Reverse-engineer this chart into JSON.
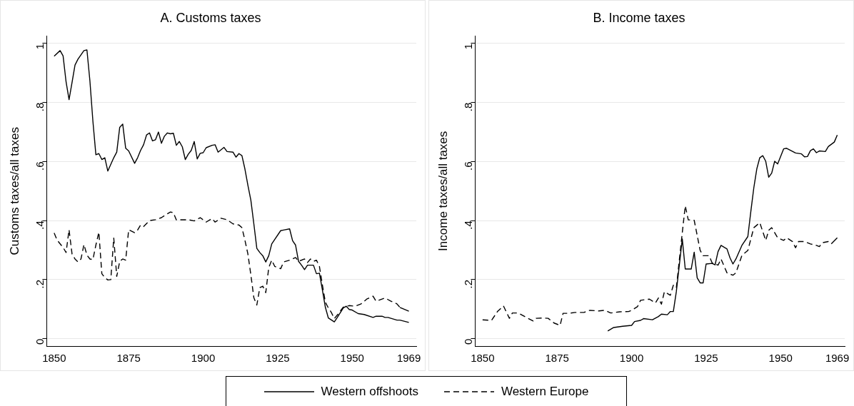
{
  "chart_data": [
    {
      "type": "line",
      "title": "A. Customs taxes",
      "ylabel": "Customs taxes/all taxes",
      "xlim": [
        1847.5,
        1971.5
      ],
      "xticks": [
        1850,
        1875,
        1900,
        1925,
        1950,
        1969
      ],
      "ylim": [
        -0.025,
        1.025
      ],
      "yticks": [
        {
          "value": 0,
          "label": "0"
        },
        {
          "value": 0.2,
          "label": ".2"
        },
        {
          "value": 0.4,
          "label": ".4"
        },
        {
          "value": 0.6,
          "label": ".6"
        },
        {
          "value": 0.8,
          "label": ".8"
        },
        {
          "value": 1,
          "label": "1"
        }
      ],
      "grid": "y",
      "legend": "bottom",
      "marker": "none",
      "series": [
        {
          "name": "Western offshoots",
          "color": "#000000",
          "line_style": "solid",
          "x": [
            1850,
            1852,
            1853,
            1854,
            1855,
            1856,
            1857,
            1858,
            1860,
            1861,
            1862,
            1863,
            1864,
            1865,
            1866,
            1867,
            1868,
            1870,
            1871,
            1872,
            1873,
            1874,
            1875,
            1877,
            1878,
            1879,
            1880,
            1881,
            1882,
            1883,
            1884,
            1885,
            1886,
            1887,
            1888,
            1889,
            1890,
            1891,
            1892,
            1893,
            1894,
            1895,
            1896,
            1897,
            1898,
            1899,
            1900,
            1901,
            1903,
            1904,
            1905,
            1907,
            1908,
            1910,
            1911,
            1912,
            1913,
            1914,
            1915,
            1916,
            1917,
            1918,
            1919,
            1920,
            1921,
            1922,
            1923,
            1924,
            1926,
            1927,
            1929,
            1930,
            1931,
            1932,
            1933,
            1934,
            1935,
            1937,
            1938,
            1939,
            1940,
            1941,
            1942,
            1944,
            1945,
            1947,
            1948,
            1949,
            1950,
            1952,
            1954,
            1957,
            1958,
            1960,
            1961,
            1962,
            1965,
            1966,
            1969
          ],
          "values": [
            0.957,
            0.976,
            0.958,
            0.87,
            0.81,
            0.868,
            0.927,
            0.947,
            0.976,
            0.978,
            0.873,
            0.737,
            0.623,
            0.627,
            0.607,
            0.613,
            0.568,
            0.613,
            0.632,
            0.716,
            0.727,
            0.645,
            0.636,
            0.594,
            0.613,
            0.638,
            0.657,
            0.69,
            0.697,
            0.67,
            0.674,
            0.7,
            0.662,
            0.686,
            0.697,
            0.694,
            0.696,
            0.655,
            0.668,
            0.65,
            0.607,
            0.625,
            0.638,
            0.668,
            0.609,
            0.628,
            0.63,
            0.647,
            0.655,
            0.657,
            0.632,
            0.648,
            0.634,
            0.632,
            0.615,
            0.627,
            0.62,
            0.575,
            0.52,
            0.469,
            0.389,
            0.306,
            0.292,
            0.281,
            0.26,
            0.281,
            0.321,
            0.336,
            0.366,
            0.368,
            0.372,
            0.332,
            0.317,
            0.262,
            0.249,
            0.234,
            0.249,
            0.249,
            0.22,
            0.222,
            0.165,
            0.106,
            0.07,
            0.057,
            0.072,
            0.104,
            0.11,
            0.099,
            0.097,
            0.085,
            0.082,
            0.072,
            0.076,
            0.076,
            0.072,
            0.072,
            0.063,
            0.063,
            0.055
          ]
        },
        {
          "name": "Western Europe",
          "color": "#000000",
          "line_style": "dashed",
          "x": [
            1850,
            1851,
            1853,
            1854,
            1855,
            1856,
            1857,
            1858,
            1859,
            1860,
            1861,
            1862,
            1863,
            1864,
            1865,
            1866,
            1867,
            1868,
            1869,
            1870,
            1871,
            1872,
            1873,
            1874,
            1875,
            1877,
            1878,
            1879,
            1880,
            1882,
            1884,
            1886,
            1888,
            1889,
            1890,
            1891,
            1893,
            1895,
            1897,
            1899,
            1901,
            1903,
            1904,
            1906,
            1908,
            1910,
            1912,
            1913,
            1914,
            1915,
            1916,
            1917,
            1918,
            1919,
            1920,
            1921,
            1922,
            1923,
            1924,
            1926,
            1927,
            1929,
            1931,
            1932,
            1934,
            1935,
            1936,
            1937,
            1938,
            1939,
            1940,
            1941,
            1942,
            1943,
            1944,
            1945,
            1947,
            1949,
            1951,
            1953,
            1955,
            1957,
            1958,
            1961,
            1963,
            1965,
            1966,
            1969
          ],
          "values": [
            0.358,
            0.334,
            0.309,
            0.292,
            0.369,
            0.287,
            0.27,
            0.26,
            0.27,
            0.319,
            0.283,
            0.27,
            0.268,
            0.317,
            0.361,
            0.22,
            0.207,
            0.199,
            0.2,
            0.341,
            0.211,
            0.262,
            0.27,
            0.266,
            0.369,
            0.359,
            0.368,
            0.385,
            0.38,
            0.4,
            0.403,
            0.41,
            0.423,
            0.429,
            0.427,
            0.402,
            0.403,
            0.403,
            0.399,
            0.41,
            0.395,
            0.407,
            0.395,
            0.408,
            0.403,
            0.389,
            0.385,
            0.376,
            0.334,
            0.287,
            0.216,
            0.139,
            0.114,
            0.173,
            0.178,
            0.156,
            0.241,
            0.266,
            0.245,
            0.237,
            0.26,
            0.266,
            0.275,
            0.262,
            0.27,
            0.258,
            0.27,
            0.262,
            0.266,
            0.245,
            0.182,
            0.123,
            0.104,
            0.089,
            0.068,
            0.08,
            0.107,
            0.112,
            0.11,
            0.118,
            0.135,
            0.144,
            0.127,
            0.138,
            0.127,
            0.118,
            0.106,
            0.093
          ]
        }
      ]
    },
    {
      "type": "line",
      "title": "B. Income taxes",
      "ylabel": "Income taxes/all taxes",
      "xlim": [
        1847.5,
        1971.5
      ],
      "xticks": [
        1850,
        1875,
        1900,
        1925,
        1950,
        1969
      ],
      "ylim": [
        -0.025,
        1.025
      ],
      "yticks": [
        {
          "value": 0,
          "label": "0"
        },
        {
          "value": 0.2,
          "label": ".2"
        },
        {
          "value": 0.4,
          "label": ".4"
        },
        {
          "value": 0.6,
          "label": ".6"
        },
        {
          "value": 0.8,
          "label": ".8"
        },
        {
          "value": 1,
          "label": "1"
        }
      ],
      "grid": "y",
      "legend": "bottom",
      "marker": "none",
      "series": [
        {
          "name": "Western offshoots",
          "color": "#000000",
          "line_style": "solid",
          "x": [
            1892,
            1894,
            1897,
            1900,
            1901,
            1903,
            1904,
            1907,
            1909,
            1910,
            1912,
            1913,
            1914,
            1915,
            1917,
            1918,
            1920,
            1921,
            1922,
            1923,
            1924,
            1925,
            1927,
            1928,
            1929,
            1930,
            1932,
            1933,
            1934,
            1935,
            1937,
            1939,
            1940,
            1941,
            1942,
            1943,
            1944,
            1945,
            1946,
            1947,
            1948,
            1949,
            1951,
            1952,
            1955,
            1957,
            1958,
            1959,
            1960,
            1961,
            1962,
            1963,
            1965,
            1966,
            1968,
            1969
          ],
          "values": [
            0.026,
            0.038,
            0.042,
            0.045,
            0.058,
            0.062,
            0.068,
            0.064,
            0.075,
            0.083,
            0.081,
            0.092,
            0.092,
            0.159,
            0.338,
            0.236,
            0.236,
            0.293,
            0.206,
            0.189,
            0.189,
            0.253,
            0.255,
            0.25,
            0.295,
            0.316,
            0.304,
            0.274,
            0.253,
            0.27,
            0.316,
            0.346,
            0.431,
            0.511,
            0.575,
            0.613,
            0.62,
            0.601,
            0.547,
            0.561,
            0.601,
            0.592,
            0.643,
            0.645,
            0.629,
            0.626,
            0.616,
            0.617,
            0.637,
            0.643,
            0.63,
            0.636,
            0.634,
            0.651,
            0.666,
            0.69
          ]
        },
        {
          "name": "Western Europe",
          "color": "#000000",
          "line_style": "dashed",
          "x": [
            1850,
            1853,
            1855,
            1857,
            1859,
            1860,
            1862,
            1865,
            1867,
            1868,
            1870,
            1872,
            1874,
            1876,
            1877,
            1879,
            1881,
            1884,
            1886,
            1889,
            1891,
            1893,
            1896,
            1899,
            1900,
            1902,
            1903,
            1906,
            1908,
            1909,
            1910,
            1911,
            1913,
            1914,
            1915,
            1917,
            1918,
            1919,
            1921,
            1923,
            1924,
            1926,
            1927,
            1929,
            1930,
            1932,
            1934,
            1935,
            1937,
            1939,
            1941,
            1943,
            1945,
            1946,
            1947,
            1949,
            1951,
            1952,
            1954,
            1955,
            1956,
            1958,
            1960,
            1962,
            1963,
            1964,
            1966,
            1967,
            1969
          ],
          "values": [
            0.064,
            0.062,
            0.092,
            0.111,
            0.069,
            0.087,
            0.087,
            0.07,
            0.06,
            0.069,
            0.07,
            0.069,
            0.053,
            0.045,
            0.086,
            0.086,
            0.089,
            0.089,
            0.096,
            0.094,
            0.096,
            0.087,
            0.091,
            0.092,
            0.096,
            0.109,
            0.13,
            0.134,
            0.121,
            0.138,
            0.117,
            0.159,
            0.147,
            0.181,
            0.172,
            0.359,
            0.45,
            0.403,
            0.401,
            0.299,
            0.281,
            0.281,
            0.257,
            0.249,
            0.27,
            0.223,
            0.215,
            0.223,
            0.282,
            0.299,
            0.376,
            0.393,
            0.333,
            0.367,
            0.376,
            0.342,
            0.333,
            0.342,
            0.329,
            0.308,
            0.329,
            0.329,
            0.321,
            0.316,
            0.312,
            0.325,
            0.329,
            0.321,
            0.342
          ]
        }
      ]
    }
  ]
}
